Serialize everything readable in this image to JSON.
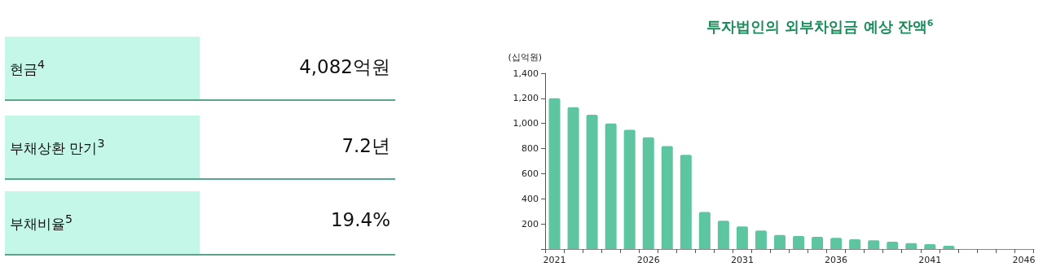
{
  "chart_data": [
    {
      "type": "other",
      "annotations": [
        "현금$^{4}$",
        "4,082억원",
        "부채상환 만기$^{3}$",
        "7.2년",
        "부채비율$^{5}$",
        "19.4%"
      ]
    },
    {
      "type": "bar",
      "title": "투자법인의 외부차입금 예상 잔액$^{6}$",
      "ylabel": "(십억원)",
      "categories": [
        "2021",
        null,
        null,
        null,
        null,
        "2026",
        null,
        null,
        null,
        null,
        "2031",
        null,
        null,
        null,
        null,
        "2036",
        null,
        null,
        null,
        null,
        "2041",
        null,
        null,
        null,
        null,
        "2046"
      ],
      "values": [
        1200,
        1130,
        1070,
        1000,
        950,
        890,
        820,
        750,
        295,
        225,
        180,
        147,
        112,
        104,
        97,
        89,
        78,
        69,
        58,
        47,
        39,
        26,
        null,
        null,
        null,
        null
      ],
      "color": "#5dc6a1",
      "ylim": [
        0,
        1400
      ],
      "yticks": [
        {
          "value": 0,
          "label": null
        },
        200,
        400,
        600,
        800,
        {
          "value": 1000,
          "label": "1,000"
        },
        {
          "value": 1200,
          "label": "1,200"
        },
        {
          "value": 1400,
          "label": "1,400"
        }
      ]
    }
  ]
}
